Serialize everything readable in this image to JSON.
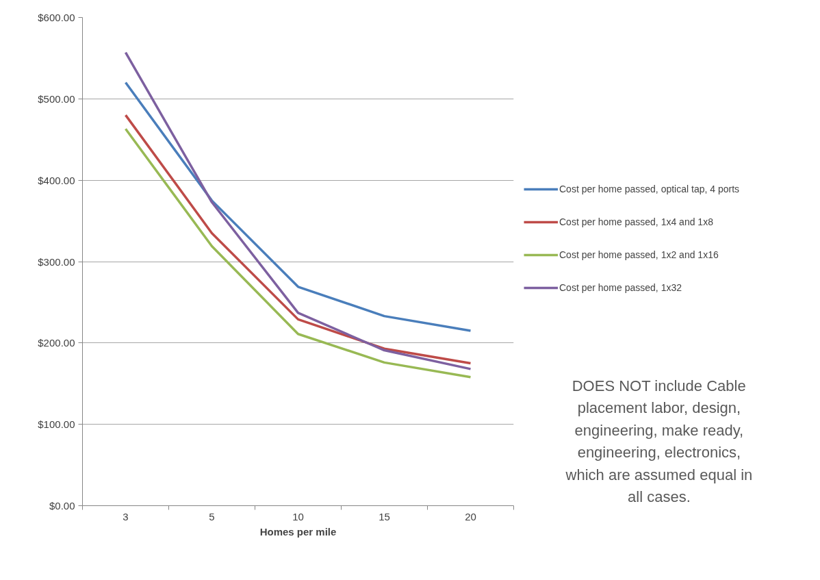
{
  "chart_data": {
    "type": "line",
    "xlabel": "Homes per mile",
    "categories": [
      "3",
      "5",
      "10",
      "15",
      "20"
    ],
    "series": [
      {
        "name": "Cost per home passed, optical tap, 4 ports",
        "color": "#4a7ebb",
        "values": [
          520,
          375,
          269,
          233,
          215
        ]
      },
      {
        "name": "Cost per home passed, 1x4 and 1x8",
        "color": "#be4b48",
        "values": [
          480,
          335,
          229,
          193,
          175
        ]
      },
      {
        "name": "Cost per home passed, 1x2 and 1x16",
        "color": "#98b954",
        "values": [
          463,
          319,
          211,
          176,
          158
        ]
      },
      {
        "name": "Cost per home passed, 1x32",
        "color": "#7d60a0",
        "values": [
          557,
          373,
          237,
          191,
          168
        ]
      }
    ],
    "ylim": [
      0,
      600
    ],
    "yticks": [
      {
        "value": 0,
        "label": "$0.00"
      },
      {
        "value": 100,
        "label": "$100.00"
      },
      {
        "value": 200,
        "label": "$200.00"
      },
      {
        "value": 300,
        "label": "$300.00"
      },
      {
        "value": 400,
        "label": "$400.00"
      },
      {
        "value": 500,
        "label": "$500.00"
      },
      {
        "value": 600,
        "label": "$600.00"
      }
    ],
    "grid": "y",
    "legend": "right",
    "marker": "none",
    "line_style": "solid",
    "annotations": [
      "DOES NOT include Cable placement labor, design, engineering, make ready, engineering, electronics, which are assumed equal in all cases."
    ]
  }
}
